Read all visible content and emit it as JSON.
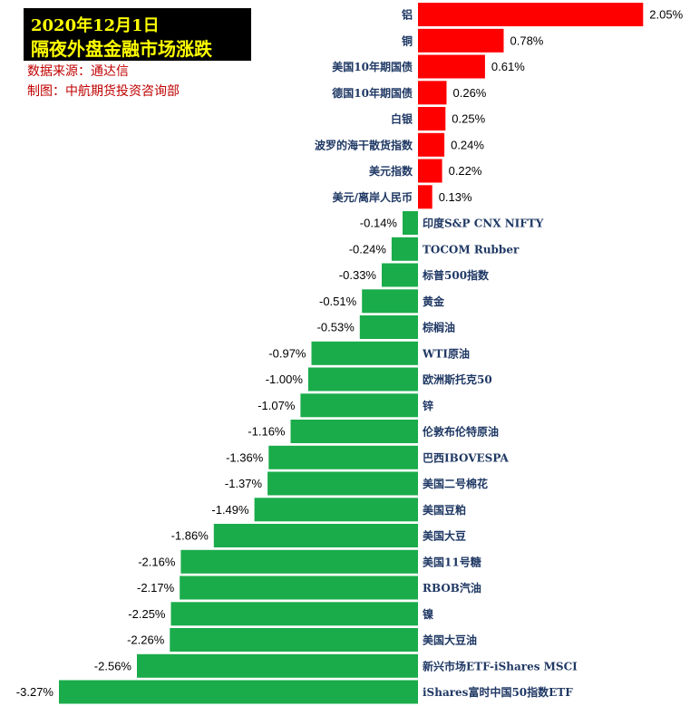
{
  "header": {
    "title_date": "2020年12月1日",
    "title_main": "隔夜外盘金融市场涨跌",
    "source": "数据来源：通达信",
    "maker": "制图：中航期货投资咨询部"
  },
  "colors": {
    "positive": "#ff0000",
    "negative": "#1aac4a",
    "title_bg": "#000000",
    "title_text": "#ffff00",
    "source_text": "#c00000",
    "category_text": "#1f3864"
  },
  "chart_data": {
    "type": "bar",
    "orientation": "horizontal",
    "value_format": "percent",
    "categories": [
      "铝",
      "铜",
      "美国10年期国债",
      "德国10年期国债",
      "白银",
      "波罗的海干散货指数",
      "美元指数",
      "美元/离岸人民币",
      "印度S&P CNX NIFTY",
      "TOCOM Rubber",
      "标普500指数",
      "黄金",
      "棕榈油",
      "WTI原油",
      "欧洲斯托克50",
      "锌",
      "伦敦布伦特原油",
      "巴西IBOVESPA",
      "美国二号棉花",
      "美国豆粕",
      "美国大豆",
      "美国11号糖",
      "RBOB汽油",
      "镍",
      "美国大豆油",
      "新兴市场ETF-iShares MSCI",
      "iShares富时中国50指数ETF"
    ],
    "values": [
      2.05,
      0.78,
      0.61,
      0.26,
      0.25,
      0.24,
      0.22,
      0.13,
      -0.14,
      -0.24,
      -0.33,
      -0.51,
      -0.53,
      -0.97,
      -1.0,
      -1.07,
      -1.16,
      -1.36,
      -1.37,
      -1.49,
      -1.86,
      -2.16,
      -2.17,
      -2.25,
      -2.26,
      -2.56,
      -3.27
    ],
    "value_labels": [
      "2.05%",
      "0.78%",
      "0.61%",
      "0.26%",
      "0.25%",
      "0.24%",
      "0.22%",
      "0.13%",
      "-0.14%",
      "-0.24%",
      "-0.33%",
      "-0.51%",
      "-0.53%",
      "-0.97%",
      "-1.00%",
      "-1.07%",
      "-1.16%",
      "-1.36%",
      "-1.37%",
      "-1.49%",
      "-1.86%",
      "-2.16%",
      "-2.17%",
      "-2.25%",
      "-2.26%",
      "-2.56%",
      "-3.27%"
    ],
    "grid": false,
    "legend": "none"
  }
}
